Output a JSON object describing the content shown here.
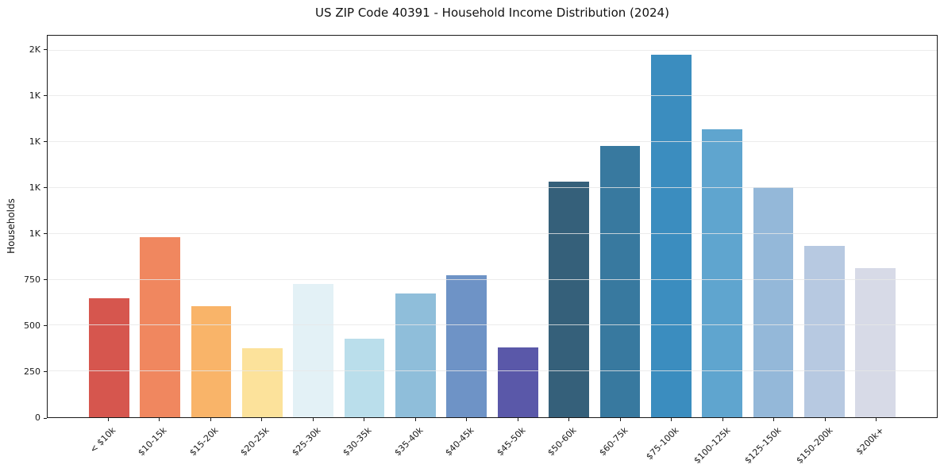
{
  "chart_data": {
    "type": "bar",
    "title": "US ZIP Code 40391 - Household Income Distribution (2024)",
    "xlabel": "",
    "ylabel": "Households",
    "categories": [
      "< $10k",
      "$10-15k",
      "$15-20k",
      "$20-25k",
      "$25-30k",
      "$30-35k",
      "$35-40k",
      "$40-45k",
      "$45-50k",
      "$50-60k",
      "$60-75k",
      "$75-100k",
      "$100-125k",
      "$125-150k",
      "$150-200k",
      "$200k+"
    ],
    "values": [
      650,
      980,
      605,
      375,
      725,
      430,
      675,
      775,
      380,
      1285,
      1480,
      1975,
      1570,
      1255,
      935,
      815
    ],
    "bar_colors": [
      "#d6564e",
      "#f0875f",
      "#f9b469",
      "#fce29b",
      "#e3f1f6",
      "#badeeb",
      "#8fbeda",
      "#6e93c6",
      "#5a58a9",
      "#35607a",
      "#38799f",
      "#3b8dbf",
      "#5fa5cf",
      "#94b8d9",
      "#b7c9e1",
      "#d7dae7"
    ],
    "ylim": [
      0,
      2080
    ],
    "y_ticks": [
      {
        "value": 0,
        "label": "0"
      },
      {
        "value": 250,
        "label": "250"
      },
      {
        "value": 500,
        "label": "500"
      },
      {
        "value": 750,
        "label": "750"
      },
      {
        "value": 1000,
        "label": "1K"
      },
      {
        "value": 1250,
        "label": "1K"
      },
      {
        "value": 1500,
        "label": "1K"
      },
      {
        "value": 1750,
        "label": "1K"
      },
      {
        "value": 2000,
        "label": "2K"
      }
    ],
    "grid": "horizontal",
    "legend": "none"
  }
}
